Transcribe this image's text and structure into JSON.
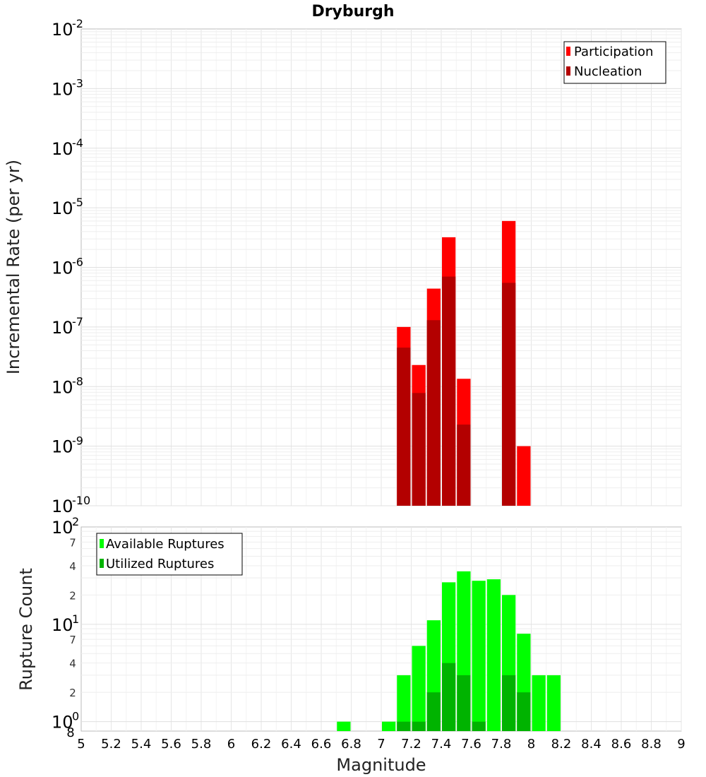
{
  "figure_title": "Dryburgh",
  "chart_data": [
    {
      "type": "bar",
      "name": "rate-chart",
      "ylabel": "Incremental Rate (per yr)",
      "yscale": "log",
      "ylim": [
        1e-10,
        0.01
      ],
      "xlim": [
        5,
        9
      ],
      "bar_width": 0.1,
      "y_ticks": [
        {
          "base": "10",
          "exp": "-10",
          "value": 1e-10
        },
        {
          "base": "10",
          "exp": "-9",
          "value": 1e-09
        },
        {
          "base": "10",
          "exp": "-8",
          "value": 1e-08
        },
        {
          "base": "10",
          "exp": "-7",
          "value": 1e-07
        },
        {
          "base": "10",
          "exp": "-6",
          "value": 1e-06
        },
        {
          "base": "10",
          "exp": "-5",
          "value": 1e-05
        },
        {
          "base": "10",
          "exp": "-4",
          "value": 0.0001
        },
        {
          "base": "10",
          "exp": "-3",
          "value": 0.001
        },
        {
          "base": "10",
          "exp": "-2",
          "value": 0.01
        }
      ],
      "legend": {
        "position": "top-right",
        "entries": [
          "Participation",
          "Nucleation"
        ]
      },
      "series": [
        {
          "name": "Participation",
          "color": "#ff0000",
          "x": [
            7.15,
            7.25,
            7.35,
            7.45,
            7.55,
            7.85,
            7.95
          ],
          "values": [
            1e-07,
            2.3e-08,
            4.4e-07,
            3.2e-06,
            1.35e-08,
            6e-06,
            1e-09
          ]
        },
        {
          "name": "Nucleation",
          "color": "#b30000",
          "x": [
            7.15,
            7.25,
            7.35,
            7.45,
            7.55,
            7.85
          ],
          "values": [
            4.5e-08,
            7.8e-09,
            1.3e-07,
            7e-07,
            2.3e-09,
            5.5e-07
          ]
        }
      ]
    },
    {
      "type": "bar",
      "name": "count-chart",
      "ylabel": "Rupture Count",
      "xlabel": "Magnitude",
      "yscale": "log",
      "ylim": [
        0.8,
        100
      ],
      "xlim": [
        5,
        9
      ],
      "bar_width": 0.1,
      "x_ticks": [
        "5",
        "5.2",
        "5.4",
        "5.6",
        "5.8",
        "6",
        "6.2",
        "6.4",
        "6.6",
        "6.8",
        "7",
        "7.2",
        "7.4",
        "7.6",
        "7.8",
        "8",
        "8.2",
        "8.4",
        "8.6",
        "8.8",
        "9"
      ],
      "y_major_ticks": [
        {
          "base": "10",
          "exp": "0",
          "value": 1
        },
        {
          "base": "10",
          "exp": "1",
          "value": 10
        },
        {
          "base": "10",
          "exp": "2",
          "value": 100
        }
      ],
      "y_minor_ticks": [
        {
          "label": "8",
          "value": 0.8
        },
        {
          "label": "2",
          "value": 2
        },
        {
          "label": "4",
          "value": 4
        },
        {
          "label": "7",
          "value": 7
        },
        {
          "label": "2",
          "value": 20
        },
        {
          "label": "4",
          "value": 40
        },
        {
          "label": "7",
          "value": 70
        }
      ],
      "legend": {
        "position": "top-left",
        "entries": [
          "Available Ruptures",
          "Utilized Ruptures"
        ]
      },
      "series": [
        {
          "name": "Available Ruptures",
          "color": "#00ff00",
          "x": [
            6.75,
            7.05,
            7.15,
            7.25,
            7.35,
            7.45,
            7.55,
            7.65,
            7.75,
            7.85,
            7.95,
            8.05,
            8.15
          ],
          "values": [
            1,
            1,
            3,
            6,
            11,
            27,
            35,
            28,
            29,
            20,
            8,
            3,
            3
          ]
        },
        {
          "name": "Utilized Ruptures",
          "color": "#00b300",
          "x": [
            7.15,
            7.25,
            7.35,
            7.45,
            7.55,
            7.65,
            7.85,
            7.95
          ],
          "values": [
            1,
            1,
            2,
            4,
            3,
            1,
            3,
            2
          ]
        }
      ]
    }
  ]
}
